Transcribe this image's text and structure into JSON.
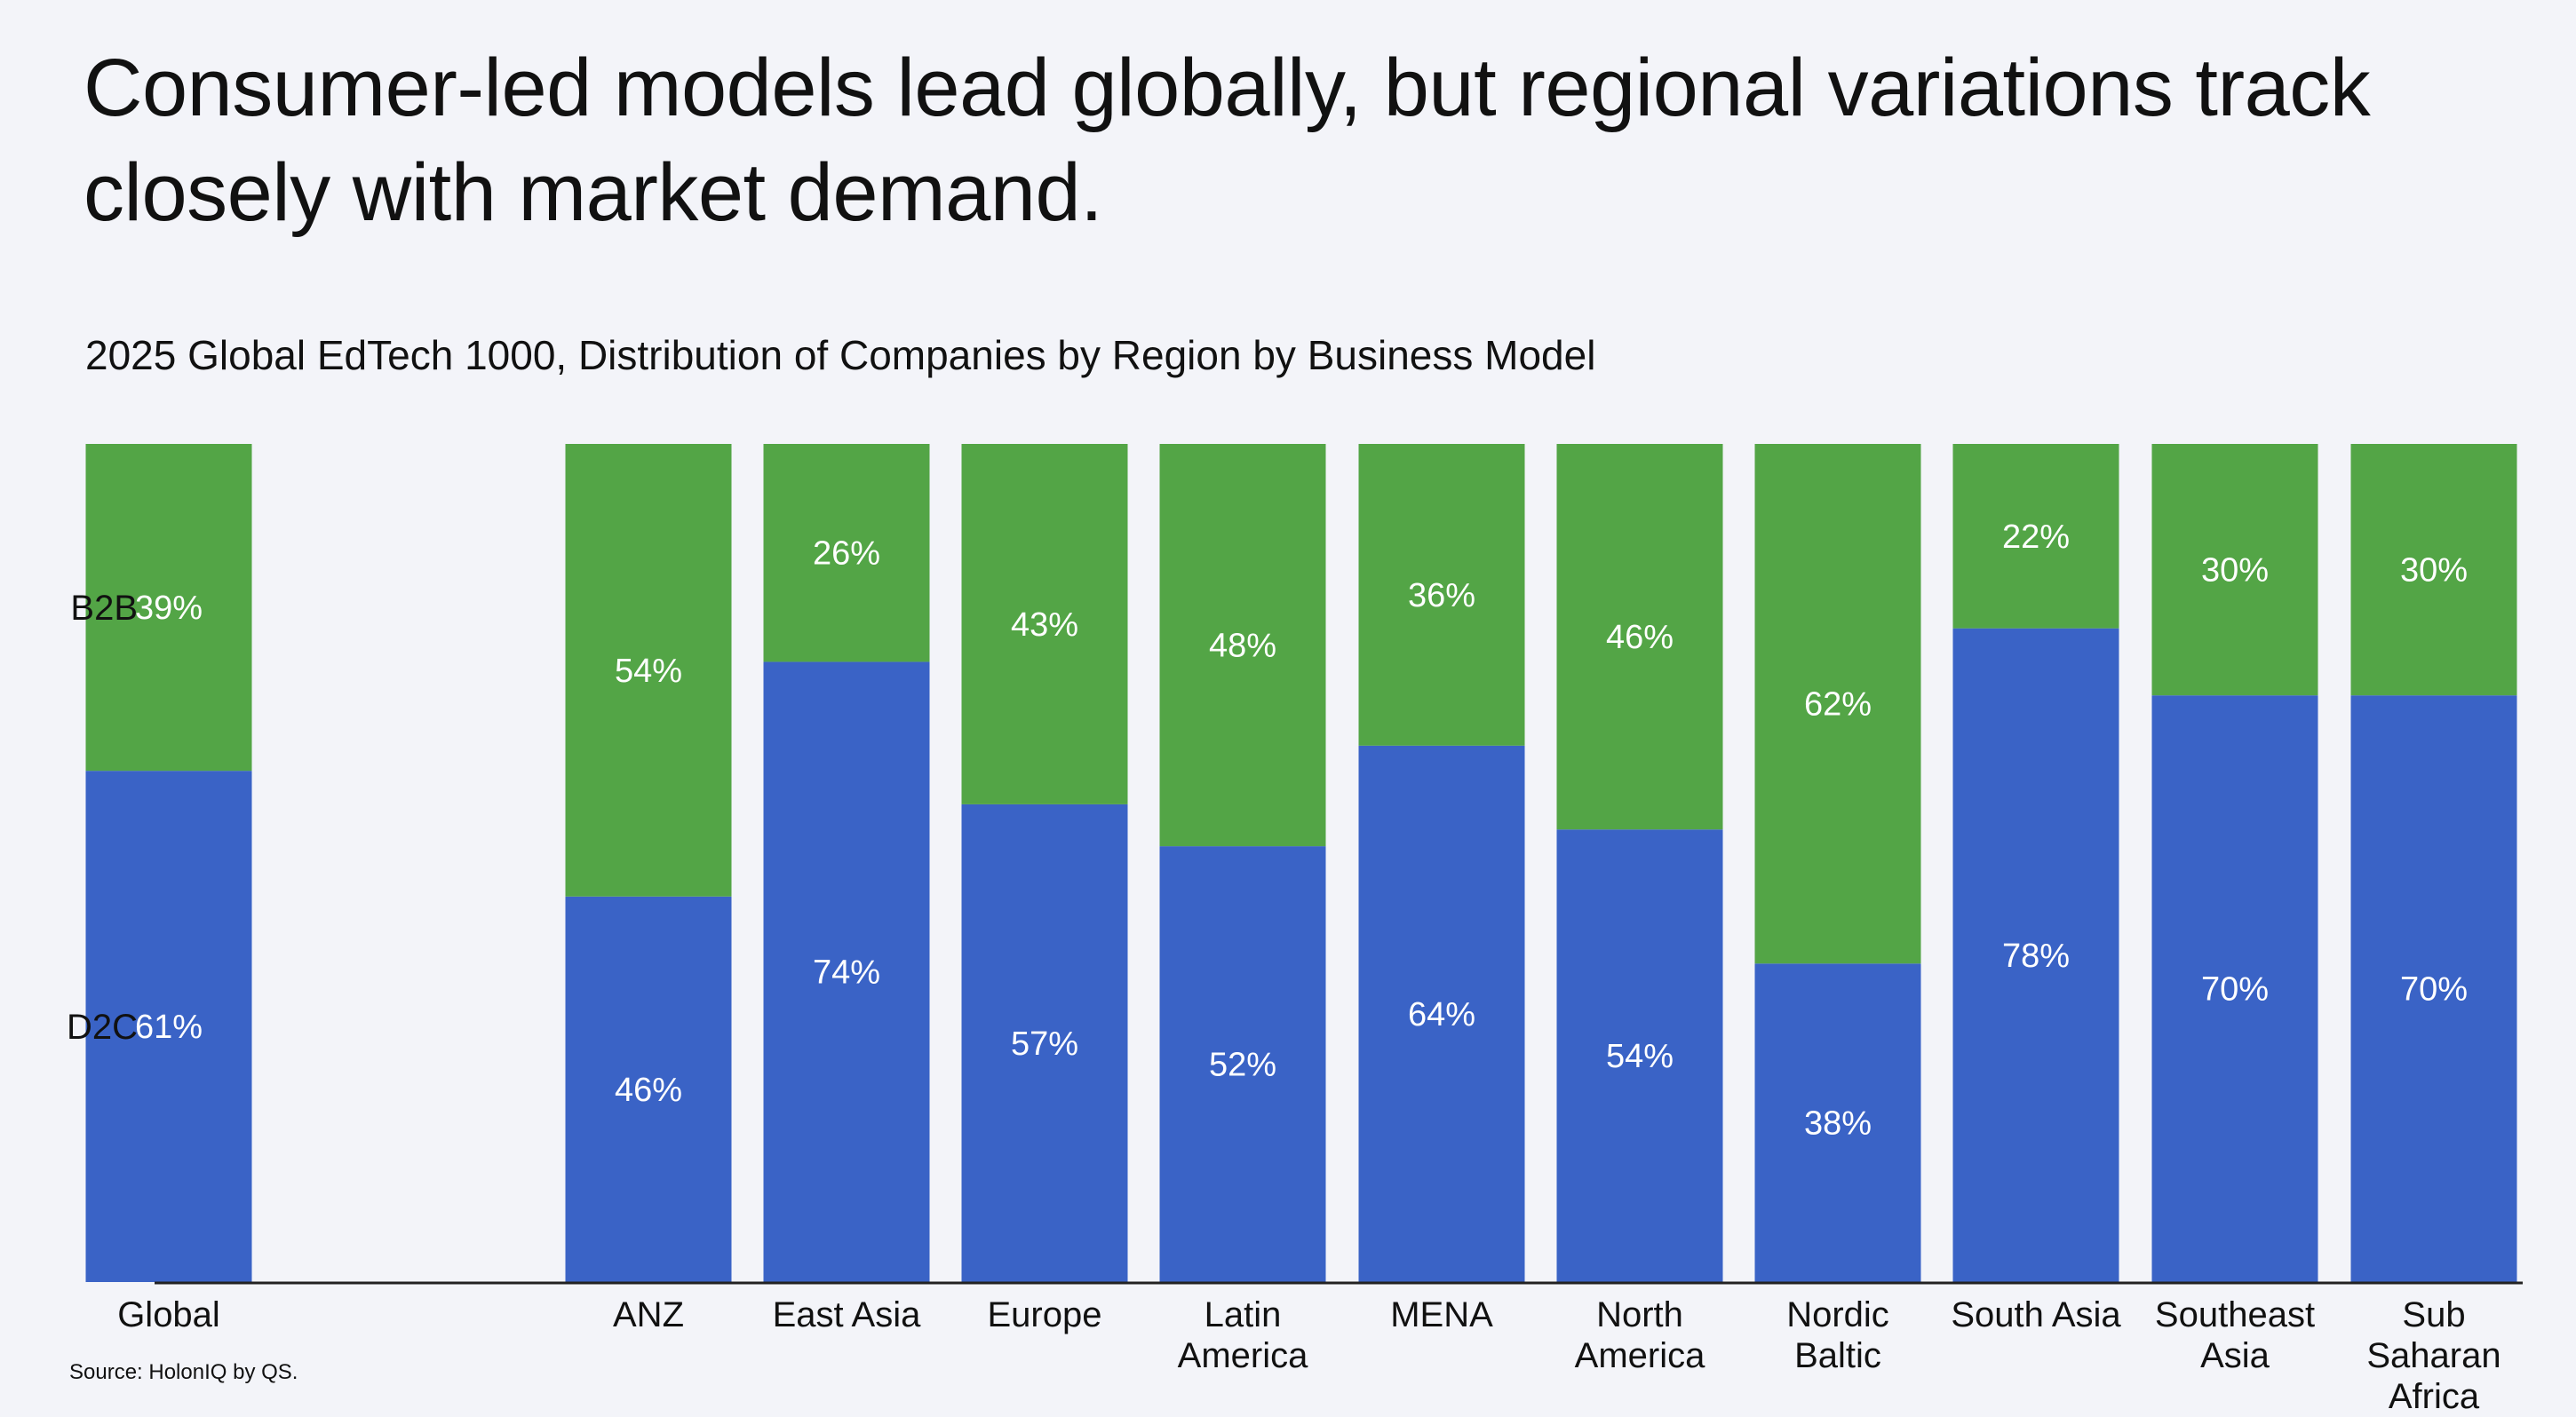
{
  "headline": "Consumer-led models lead globally, but regional variations track closely with market demand.",
  "subtitle": "2025 Global EdTech 1000, Distribution of Companies by Region by Business Model",
  "source": "Source: HolonIQ by QS.",
  "colors": {
    "b2b": "#53A546",
    "d2c": "#3A63C6",
    "background": "#F3F4F9",
    "axis": "#222222"
  },
  "chart_data": {
    "type": "bar",
    "stacked": true,
    "percent": true,
    "title": "2025 Global EdTech 1000, Distribution of Companies by Region by Business Model",
    "xlabel": "",
    "ylabel": "",
    "ylim": [
      0,
      100
    ],
    "row_labels": [
      "B2B",
      "D2C"
    ],
    "categories": [
      [
        "Global"
      ],
      [
        "ANZ"
      ],
      [
        "East Asia"
      ],
      [
        "Europe"
      ],
      [
        "Latin",
        "America"
      ],
      [
        "MENA"
      ],
      [
        "North",
        "America"
      ],
      [
        "Nordic",
        "Baltic"
      ],
      [
        "South Asia"
      ],
      [
        "Southeast",
        "Asia"
      ],
      [
        "Sub",
        "Saharan",
        "Africa"
      ]
    ],
    "series": [
      {
        "name": "D2C",
        "values": [
          61,
          46,
          74,
          57,
          52,
          64,
          54,
          38,
          78,
          70,
          70
        ],
        "labels": [
          "61%",
          "46%",
          "74%",
          "57%",
          "52%",
          "64%",
          "54%",
          "38%",
          "78%",
          "70%",
          "70%"
        ]
      },
      {
        "name": "B2B",
        "values": [
          39,
          54,
          26,
          43,
          48,
          36,
          46,
          62,
          22,
          30,
          30
        ],
        "labels": [
          "39%",
          "54%",
          "26%",
          "43%",
          "48%",
          "36%",
          "46%",
          "62%",
          "22%",
          "30%",
          "30%"
        ]
      }
    ]
  }
}
